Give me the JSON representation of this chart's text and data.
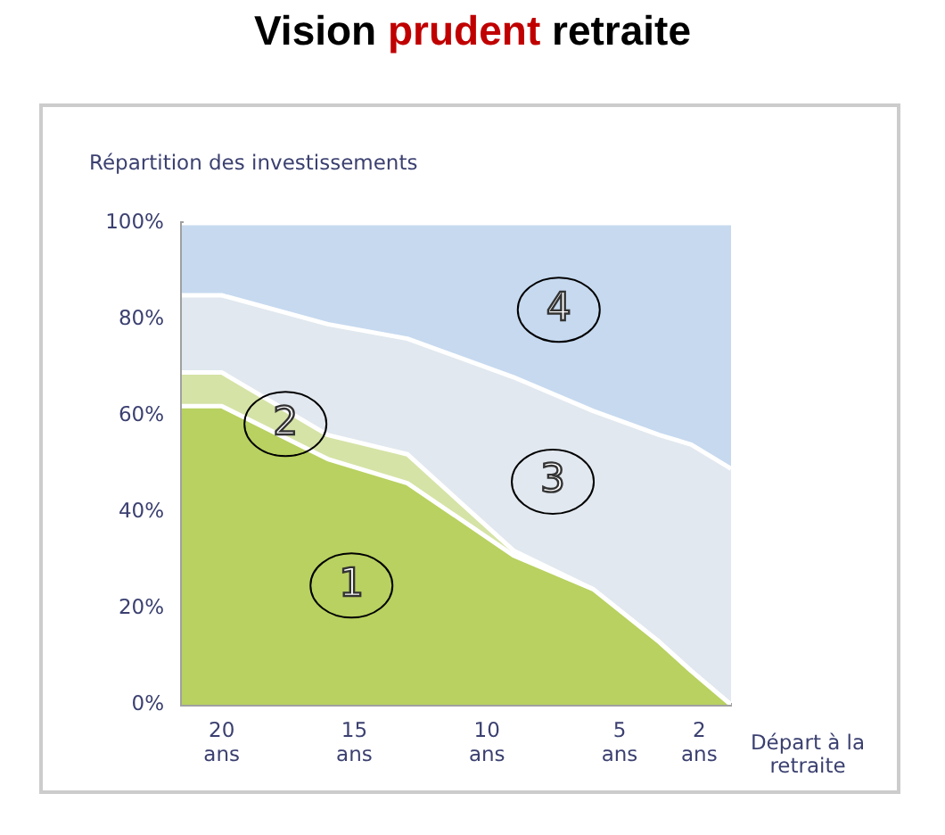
{
  "chart_data": {
    "type": "area",
    "stacked": true,
    "title": "Vision prudent retraite",
    "ylabel": "Répartition des investissements",
    "xlabel": "Départ à la retraite",
    "x": [
      21.5,
      20,
      16,
      13,
      9,
      6,
      3.5,
      2.3,
      0.8
    ],
    "series": [
      {
        "color": "#b8d160",
        "values": [
          62,
          62,
          51,
          46,
          31,
          24,
          13,
          7,
          0
        ]
      },
      {
        "color": "#d5e3a6",
        "values": [
          7,
          7,
          5,
          6,
          1,
          0,
          0,
          0,
          0
        ]
      },
      {
        "color": "#e1e8ef",
        "values": [
          16,
          16,
          23,
          24,
          36,
          37,
          43,
          47,
          49
        ]
      },
      {
        "color": "#c6d9ef",
        "values": [
          15,
          15,
          21,
          24,
          32,
          39,
          44,
          46,
          51
        ]
      }
    ],
    "xlim": [
      21.5,
      0.8
    ],
    "xticks": [
      {
        "value": 20,
        "label": "20 ans"
      },
      {
        "value": 15,
        "label": "15 ans"
      },
      {
        "value": 10,
        "label": "10 ans"
      },
      {
        "value": 5,
        "label": "5 ans"
      },
      {
        "value": 2,
        "label": "2 ans"
      }
    ],
    "ylim": [
      0,
      100
    ],
    "yticks": [
      {
        "value": 0,
        "label": "0%"
      },
      {
        "value": 20,
        "label": "20%"
      },
      {
        "value": 40,
        "label": "40%"
      },
      {
        "value": 60,
        "label": "60%"
      },
      {
        "value": 80,
        "label": "80%"
      },
      {
        "value": 100,
        "label": "100%"
      }
    ],
    "grid": false,
    "legend": false,
    "annotations": [
      "1",
      "2",
      "3",
      "4"
    ]
  }
}
